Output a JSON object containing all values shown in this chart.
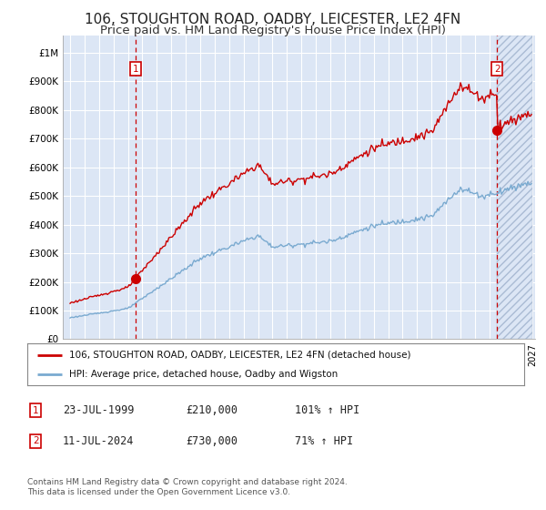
{
  "title": "106, STOUGHTON ROAD, OADBY, LEICESTER, LE2 4FN",
  "subtitle": "Price paid vs. HM Land Registry's House Price Index (HPI)",
  "title_fontsize": 11,
  "subtitle_fontsize": 9.5,
  "background_color": "#ffffff",
  "plot_bg_color": "#dce6f5",
  "grid_color": "#ffffff",
  "sale1_date": "1999-07-23",
  "sale1_price": 210000,
  "sale2_date": "2024-07-11",
  "sale2_price": 730000,
  "legend_line1": "106, STOUGHTON ROAD, OADBY, LEICESTER, LE2 4FN (detached house)",
  "legend_line2": "HPI: Average price, detached house, Oadby and Wigston",
  "footer": "Contains HM Land Registry data © Crown copyright and database right 2024.\nThis data is licensed under the Open Government Licence v3.0.",
  "sale_color": "#cc0000",
  "hpi_color": "#7aaad0",
  "vline_color": "#cc0000",
  "ytick_labels": [
    "£0",
    "£100K",
    "£200K",
    "£300K",
    "£400K",
    "£500K",
    "£600K",
    "£700K",
    "£800K",
    "£900K",
    "£1M"
  ]
}
